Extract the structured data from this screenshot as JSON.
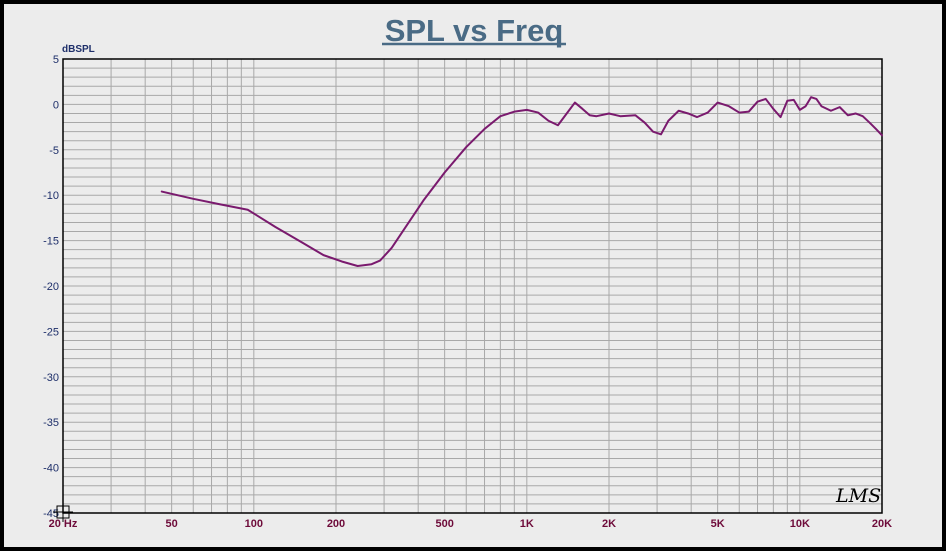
{
  "chart_data": {
    "type": "line",
    "title": "SPL vs Freq",
    "ylabel": "dBSPL",
    "xlabel": "",
    "x_scale": "log",
    "xlim": [
      20,
      20000
    ],
    "ylim": [
      -45,
      5
    ],
    "grid": true,
    "yticks": [
      5,
      0,
      -5,
      -10,
      -15,
      -20,
      -25,
      -30,
      -35,
      -40,
      -45
    ],
    "xticks": [
      {
        "value": 20,
        "label": "20 Hz"
      },
      {
        "value": 50,
        "label": "50"
      },
      {
        "value": 100,
        "label": "100"
      },
      {
        "value": 200,
        "label": "200"
      },
      {
        "value": 500,
        "label": "500"
      },
      {
        "value": 1000,
        "label": "1K"
      },
      {
        "value": 2000,
        "label": "2K"
      },
      {
        "value": 5000,
        "label": "5K"
      },
      {
        "value": 10000,
        "label": "10K"
      },
      {
        "value": 20000,
        "label": "20K"
      }
    ],
    "logo": "LMS",
    "series": [
      {
        "color": "#7a1a6e",
        "x": [
          46,
          60,
          75,
          95,
          120,
          150,
          180,
          210,
          240,
          270,
          290,
          320,
          360,
          420,
          500,
          600,
          700,
          800,
          900,
          1000,
          1100,
          1200,
          1300,
          1400,
          1500,
          1600,
          1700,
          1800,
          2000,
          2200,
          2500,
          2700,
          2900,
          3100,
          3300,
          3600,
          3900,
          4200,
          4600,
          5000,
          5500,
          6000,
          6500,
          7000,
          7500,
          8000,
          8500,
          9000,
          9500,
          10000,
          10500,
          11000,
          11500,
          12000,
          13000,
          14000,
          15000,
          16000,
          17000,
          18000,
          19000,
          20000
        ],
        "y": [
          -9.6,
          -10.4,
          -11.0,
          -11.6,
          -13.5,
          -15.2,
          -16.6,
          -17.3,
          -17.8,
          -17.6,
          -17.2,
          -15.8,
          -13.5,
          -10.5,
          -7.5,
          -4.7,
          -2.7,
          -1.3,
          -0.8,
          -0.6,
          -0.9,
          -1.8,
          -2.3,
          -1.0,
          0.2,
          -0.5,
          -1.2,
          -1.3,
          -1.0,
          -1.3,
          -1.2,
          -2.0,
          -3.0,
          -3.3,
          -1.8,
          -0.7,
          -1.0,
          -1.4,
          -0.9,
          0.2,
          -0.2,
          -0.9,
          -0.8,
          0.3,
          0.6,
          -0.5,
          -1.4,
          0.4,
          0.5,
          -0.6,
          -0.2,
          0.8,
          0.6,
          -0.2,
          -0.7,
          -0.3,
          -1.2,
          -1.0,
          -1.3,
          -2.0,
          -2.7,
          -3.4
        ]
      }
    ]
  }
}
